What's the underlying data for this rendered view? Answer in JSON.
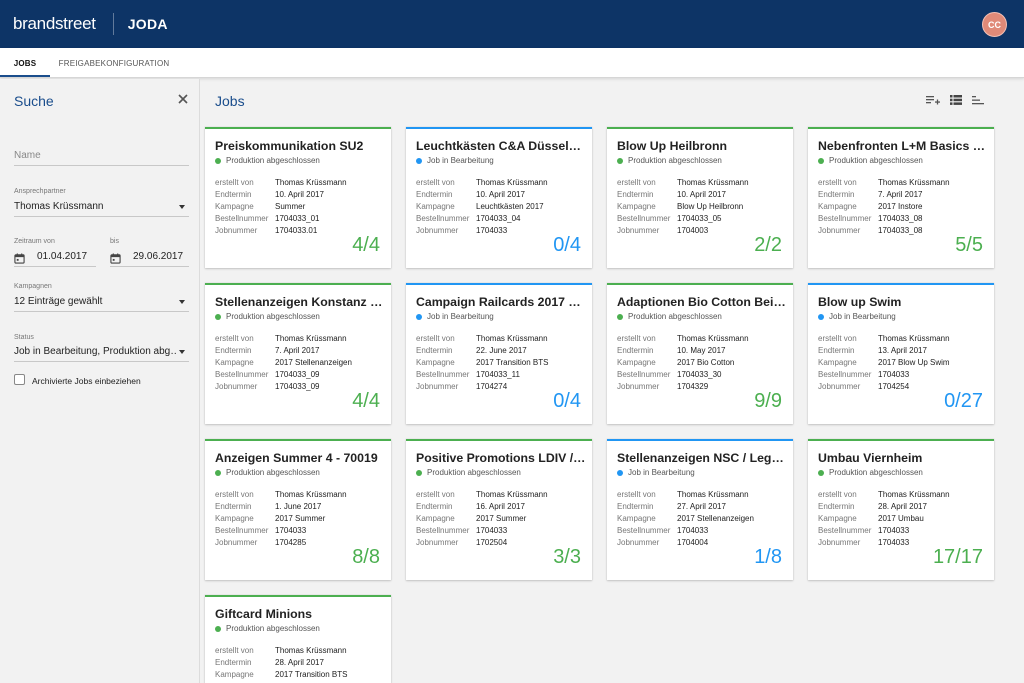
{
  "header": {
    "brand": "brandstreet",
    "app_title": "JODA",
    "avatar_initials": "CC"
  },
  "tabs": [
    {
      "label": "JOBS",
      "active": true
    },
    {
      "label": "FREIGABEKONFIGURATION",
      "active": false
    }
  ],
  "sidebar": {
    "title": "Suche",
    "name_placeholder": "Name",
    "contact_label": "Ansprechpartner",
    "contact_value": "Thomas Krüssmann",
    "period_from_label": "Zeitraum von",
    "period_from_value": "01.04.2017",
    "period_to_label": "bis",
    "period_to_value": "29.06.2017",
    "campaigns_label": "Kampagnen",
    "campaigns_value": "12 Einträge gewählt",
    "status_label": "Status",
    "status_value": "Job in Bearbeitung, Produktion abg…",
    "archived_label": "Archivierte Jobs einbeziehen",
    "archived_checked": false
  },
  "main": {
    "title": "Jobs",
    "toolbar_icons": [
      "playlist-add-icon",
      "view-list-icon",
      "sort-icon"
    ]
  },
  "field_labels": {
    "created_by": "erstellt von",
    "due_date": "Endtermin",
    "campaign": "Kampagne",
    "order_no": "Bestellnummer",
    "job_no": "Jobnummer"
  },
  "status_labels": {
    "done": "Produktion abgeschlossen",
    "in_progress": "Job in Bearbeitung"
  },
  "colors": {
    "header_bg": "#0d3466",
    "accent_blue": "#1a4d8c",
    "done_green": "#4caf50",
    "progress_blue": "#2196f3"
  },
  "jobs": [
    {
      "title": "Preiskommunikation SU2",
      "status": "Produktion abgeschlossen",
      "state": "done",
      "created_by": "Thomas Krüssmann",
      "due_date": "10. April 2017",
      "campaign": "Summer",
      "order_no": "1704033_01",
      "job_no": "1704033.01",
      "count": "4/4"
    },
    {
      "title": "Leuchtkästen C&A Düsseldo…",
      "status": "Job in Bearbeitung",
      "state": "in_progress",
      "created_by": "Thomas Krüssmann",
      "due_date": "10. April 2017",
      "campaign": "Leuchtkästen 2017",
      "order_no": "1704033_04",
      "job_no": "1704033",
      "count": "0/4"
    },
    {
      "title": "Blow Up Heilbronn",
      "status": "Produktion abgeschlossen",
      "state": "done",
      "created_by": "Thomas Krüssmann",
      "due_date": "10. April 2017",
      "campaign": "Blow Up Heilbronn",
      "order_no": "1704033_05",
      "job_no": "1704003",
      "count": "2/2"
    },
    {
      "title": "Nebenfronten L+M Basics T-…",
      "status": "Produktion abgeschlossen",
      "state": "done",
      "created_by": "Thomas Krüssmann",
      "due_date": "7. April 2017",
      "campaign": "2017 Instore",
      "order_no": "1704033_08",
      "job_no": "1704033_08",
      "count": "5/5"
    },
    {
      "title": "Stellenanzeigen Konstanz / …",
      "status": "Produktion abgeschlossen",
      "state": "done",
      "created_by": "Thomas Krüssmann",
      "due_date": "7. April 2017",
      "campaign": "2017 Stellenanzeigen",
      "order_no": "1704033_09",
      "job_no": "1704033_09",
      "count": "4/4"
    },
    {
      "title": "Campaign Railcards 2017 Tr…",
      "status": "Job in Bearbeitung",
      "state": "in_progress",
      "created_by": "Thomas Krüssmann",
      "due_date": "22. June 2017",
      "campaign": "2017 Transition BTS",
      "order_no": "1704033_11",
      "job_no": "1704274",
      "count": "0/4"
    },
    {
      "title": "Adaptionen Bio Cotton Beih…",
      "status": "Produktion abgeschlossen",
      "state": "done",
      "created_by": "Thomas Krüssmann",
      "due_date": "10. May 2017",
      "campaign": "2017 Bio Cotton",
      "order_no": "1704033_30",
      "job_no": "1704329",
      "count": "9/9"
    },
    {
      "title": "Blow up Swim",
      "status": "Job in Bearbeitung",
      "state": "in_progress",
      "created_by": "Thomas Krüssmann",
      "due_date": "13. April 2017",
      "campaign": "2017 Blow Up Swim",
      "order_no": "1704033",
      "job_no": "1704254",
      "count": "0/27"
    },
    {
      "title": "Anzeigen Summer 4 - 70019",
      "status": "Produktion abgeschlossen",
      "state": "done",
      "created_by": "Thomas Krüssmann",
      "due_date": "1. June 2017",
      "campaign": "2017 Summer",
      "order_no": "1704033",
      "job_no": "1704285",
      "count": "8/8"
    },
    {
      "title": "Positive Promotions LDIV / …",
      "status": "Produktion abgeschlossen",
      "state": "done",
      "created_by": "Thomas Krüssmann",
      "due_date": "16. April 2017",
      "campaign": "2017 Summer",
      "order_no": "1704033",
      "job_no": "1702504",
      "count": "3/3"
    },
    {
      "title": "Stellenanzeigen NSC / Lega…",
      "status": "Job in Bearbeitung",
      "state": "in_progress",
      "created_by": "Thomas Krüssmann",
      "due_date": "27. April 2017",
      "campaign": "2017 Stellenanzeigen",
      "order_no": "1704033",
      "job_no": "1704004",
      "count": "1/8"
    },
    {
      "title": "Umbau Viernheim",
      "status": "Produktion abgeschlossen",
      "state": "done",
      "created_by": "Thomas Krüssmann",
      "due_date": "28. April 2017",
      "campaign": "2017 Umbau",
      "order_no": "1704033",
      "job_no": "1704033",
      "count": "17/17"
    },
    {
      "title": "Giftcard Minions",
      "status": "Produktion abgeschlossen",
      "state": "done",
      "created_by": "Thomas Krüssmann",
      "due_date": "28. April 2017",
      "campaign": "2017 Transition BTS",
      "order_no": "",
      "job_no": "",
      "count": ""
    }
  ]
}
